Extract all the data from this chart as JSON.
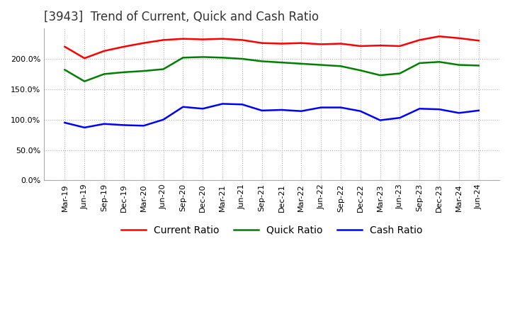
{
  "title": "[3943]  Trend of Current, Quick and Cash Ratio",
  "x_labels": [
    "Mar-19",
    "Jun-19",
    "Sep-19",
    "Dec-19",
    "Mar-20",
    "Jun-20",
    "Sep-20",
    "Dec-20",
    "Mar-21",
    "Jun-21",
    "Sep-21",
    "Dec-21",
    "Mar-22",
    "Jun-22",
    "Sep-22",
    "Dec-22",
    "Mar-23",
    "Jun-23",
    "Sep-23",
    "Dec-23",
    "Mar-24",
    "Jun-24"
  ],
  "current_ratio": [
    220,
    201,
    213,
    220,
    226,
    231,
    233,
    232,
    233,
    231,
    226,
    225,
    226,
    224,
    225,
    221,
    222,
    221,
    231,
    237,
    234,
    230
  ],
  "quick_ratio": [
    182,
    163,
    175,
    178,
    180,
    183,
    202,
    203,
    202,
    200,
    196,
    194,
    192,
    190,
    188,
    181,
    173,
    176,
    193,
    195,
    190,
    189
  ],
  "cash_ratio": [
    95,
    87,
    93,
    91,
    90,
    100,
    121,
    118,
    126,
    125,
    115,
    116,
    114,
    120,
    120,
    114,
    99,
    103,
    118,
    117,
    111,
    115
  ],
  "ylim": [
    0,
    250
  ],
  "yticks": [
    0,
    50,
    100,
    150,
    200
  ],
  "line_colors": {
    "current": "#ff0000",
    "quick": "#008000",
    "cash": "#0000ff"
  },
  "background_color": "#ffffff",
  "grid_color": "#aaaaaa",
  "title_fontsize": 12,
  "tick_fontsize": 8,
  "legend_fontsize": 10
}
